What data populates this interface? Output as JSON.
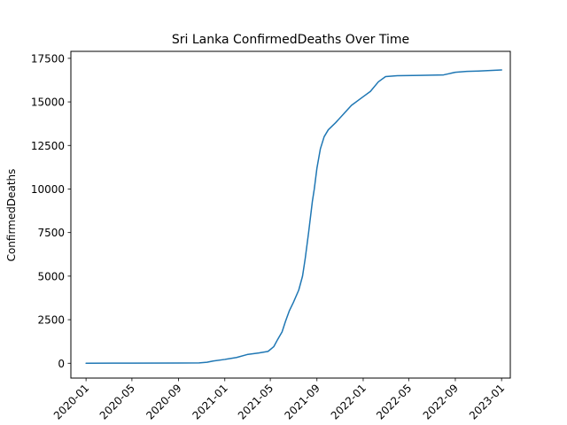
{
  "chart_data": {
    "type": "line",
    "title": "Sri Lanka  ConfirmedDeaths Over Time",
    "xlabel": "",
    "ylabel": "ConfirmedDeaths",
    "grid": false,
    "legend": "none",
    "ylim": [
      -850,
      17900
    ],
    "xlim": [
      "2019-11-22",
      "2023-01-24"
    ],
    "yticks": [
      0,
      2500,
      5000,
      7500,
      10000,
      12500,
      15000,
      17500
    ],
    "ytick_labels": [
      "0",
      "2500",
      "5000",
      "7500",
      "10000",
      "12500",
      "15000",
      "17500"
    ],
    "xticks": [
      "2020-01-01",
      "2020-05-01",
      "2020-09-01",
      "2021-01-01",
      "2021-05-01",
      "2021-09-01",
      "2022-01-01",
      "2022-05-01",
      "2022-09-01",
      "2023-01-01"
    ],
    "xtick_labels": [
      "2020-01",
      "2020-05",
      "2020-09",
      "2021-01",
      "2021-05",
      "2021-09",
      "2022-01",
      "2022-05",
      "2022-09",
      "2023-01"
    ],
    "series": [
      {
        "color": "#1f77b4",
        "points": [
          [
            "2020-01-01",
            0
          ],
          [
            "2020-03-15",
            5
          ],
          [
            "2020-05-01",
            10
          ],
          [
            "2020-09-01",
            13
          ],
          [
            "2020-10-25",
            20
          ],
          [
            "2020-11-15",
            60
          ],
          [
            "2020-12-01",
            130
          ],
          [
            "2021-01-01",
            220
          ],
          [
            "2021-02-01",
            330
          ],
          [
            "2021-03-01",
            500
          ],
          [
            "2021-04-01",
            590
          ],
          [
            "2021-04-25",
            680
          ],
          [
            "2021-05-10",
            950
          ],
          [
            "2021-05-20",
            1350
          ],
          [
            "2021-06-01",
            1800
          ],
          [
            "2021-06-10",
            2400
          ],
          [
            "2021-06-20",
            3000
          ],
          [
            "2021-07-01",
            3500
          ],
          [
            "2021-07-15",
            4200
          ],
          [
            "2021-07-25",
            5000
          ],
          [
            "2021-08-01",
            6000
          ],
          [
            "2021-08-10",
            7500
          ],
          [
            "2021-08-20",
            9300
          ],
          [
            "2021-08-25",
            10000
          ],
          [
            "2021-09-01",
            11200
          ],
          [
            "2021-09-10",
            12300
          ],
          [
            "2021-09-20",
            13000
          ],
          [
            "2021-10-01",
            13400
          ],
          [
            "2021-10-20",
            13800
          ],
          [
            "2021-11-10",
            14300
          ],
          [
            "2021-12-01",
            14800
          ],
          [
            "2022-01-01",
            15300
          ],
          [
            "2022-01-20",
            15600
          ],
          [
            "2022-02-10",
            16150
          ],
          [
            "2022-03-01",
            16450
          ],
          [
            "2022-04-01",
            16500
          ],
          [
            "2022-06-01",
            16520
          ],
          [
            "2022-08-01",
            16550
          ],
          [
            "2022-09-01",
            16700
          ],
          [
            "2022-10-01",
            16750
          ],
          [
            "2022-11-01",
            16770
          ],
          [
            "2023-01-01",
            16830
          ]
        ]
      }
    ]
  }
}
